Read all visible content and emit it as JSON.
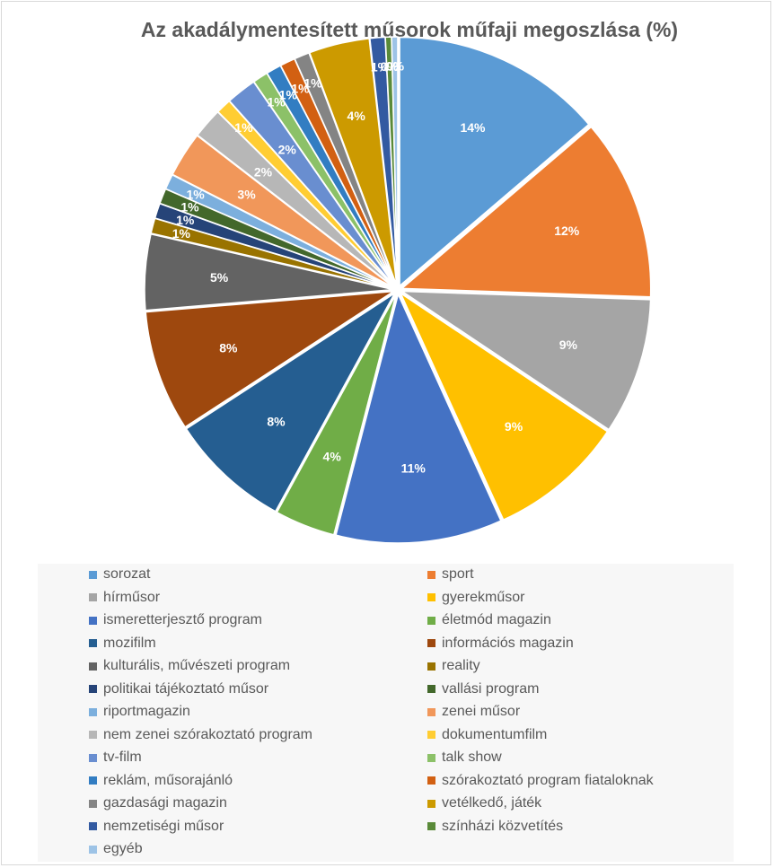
{
  "chart_data": {
    "type": "pie",
    "title": "Az akadálymentesített műsorok műfaji megoszlása (%)",
    "legend_position": "bottom",
    "slices": [
      {
        "label": "sorozat",
        "value": 14,
        "display": "14%",
        "color": "#5b9bd5"
      },
      {
        "label": "sport",
        "value": 12,
        "display": "12%",
        "color": "#ed7d31"
      },
      {
        "label": "hírműsor",
        "value": 9,
        "display": "9%",
        "color": "#a5a5a5"
      },
      {
        "label": "gyerekműsor",
        "value": 9,
        "display": "9%",
        "color": "#ffc000"
      },
      {
        "label": "ismeretterjesztő program",
        "value": 11,
        "display": "11%",
        "color": "#4472c4"
      },
      {
        "label": "életmód magazin",
        "value": 4,
        "display": "4%",
        "color": "#70ad47"
      },
      {
        "label": "mozifilm",
        "value": 8,
        "display": "8%",
        "color": "#255e91"
      },
      {
        "label": "információs magazin",
        "value": 8,
        "display": "8%",
        "color": "#9e480e"
      },
      {
        "label": "kulturális, művészeti program",
        "value": 5,
        "display": "5%",
        "color": "#636363"
      },
      {
        "label": "reality",
        "value": 1,
        "display": "1%",
        "color": "#997300"
      },
      {
        "label": "politikai tájékoztató műsor",
        "value": 1,
        "display": "1%",
        "color": "#264478"
      },
      {
        "label": "vallási program",
        "value": 1,
        "display": "1%",
        "color": "#43682b"
      },
      {
        "label": "riportmagazin",
        "value": 1,
        "display": "1%",
        "color": "#7cafdd"
      },
      {
        "label": "zenei műsor",
        "value": 3,
        "display": "3%",
        "color": "#f1975a"
      },
      {
        "label": "nem zenei szórakoztató program",
        "value": 2,
        "display": "2%",
        "color": "#b7b7b7"
      },
      {
        "label": "dokumentumfilm",
        "value": 1,
        "display": "1%",
        "color": "#ffcd33"
      },
      {
        "label": "tv-film",
        "value": 2,
        "display": "2%",
        "color": "#698ed0"
      },
      {
        "label": "talk show",
        "value": 1,
        "display": "1%",
        "color": "#8cc168"
      },
      {
        "label": "reklám, műsorajánló",
        "value": 1,
        "display": "1%",
        "color": "#327dc2"
      },
      {
        "label": "szórakoztató program fiataloknak",
        "value": 1,
        "display": "1%",
        "color": "#d26012"
      },
      {
        "label": "gazdasági magazin",
        "value": 1,
        "display": "1%",
        "color": "#848484"
      },
      {
        "label": "vetélkedő, játék",
        "value": 4,
        "display": "4%",
        "color": "#cc9a00"
      },
      {
        "label": "nemzetiségi műsor",
        "value": 1,
        "display": "1%",
        "color": "#335aa1"
      },
      {
        "label": "színházi közvetítés",
        "value": 0.4,
        "display": "0%",
        "color": "#5a8a39"
      },
      {
        "label": "egyéb",
        "value": 0.4,
        "display": "0%",
        "color": "#9dc3e6"
      }
    ]
  }
}
